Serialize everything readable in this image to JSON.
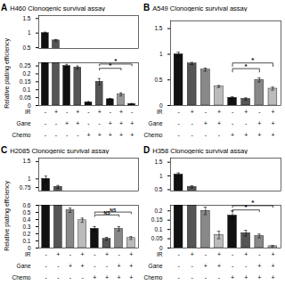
{
  "chart_data": [
    {
      "type": "bar",
      "panel_label": "A",
      "title": "H460 Clonogenic survival assay",
      "ylabel": "Relative plating efficiency",
      "categories": [
        null,
        null,
        null,
        null,
        null,
        null,
        null,
        null,
        null
      ],
      "values": [
        1.0,
        0.75,
        0.25,
        0.24,
        0.02,
        0.15,
        0.04,
        0.07,
        0.01
      ],
      "errors": [
        0.03,
        0.03,
        0.01,
        0.01,
        0.005,
        0.02,
        0.005,
        0.01,
        0.003
      ],
      "colors": [
        "#111111",
        "#555555",
        "#111111",
        "#555555",
        "#111111",
        "#555555",
        "#111111",
        "#999999",
        "#111111"
      ],
      "ylim": [
        0,
        1.6
      ],
      "ybreak": [
        0.27,
        0.47
      ],
      "yticks": [
        0,
        0.05,
        0.1,
        0.15,
        0.2,
        0.25,
        0.5,
        1,
        1.5
      ],
      "tick_labels": "y",
      "annotations": [
        {
          "x1": 5,
          "x2": 7,
          "y": 0.235,
          "label": "*"
        },
        {
          "x1": 5,
          "x2": 8,
          "y": 0.262,
          "label": "*"
        }
      ],
      "rows": [
        {
          "label": "IR",
          "values": [
            "-",
            "+",
            "-",
            "+",
            "-",
            "+",
            "-",
            "+",
            "-"
          ]
        },
        {
          "label": "Gane",
          "values": [
            "-",
            "-",
            "+",
            "+",
            "-",
            "-",
            "+",
            "+",
            "+"
          ]
        },
        {
          "label": "Chemo",
          "values": [
            "-",
            "-",
            "-",
            "-",
            "+",
            "+",
            "+",
            "+",
            "+"
          ]
        }
      ]
    },
    {
      "type": "bar",
      "panel_label": "B",
      "title": "A549 Clonogenic survival assay",
      "categories": [
        null,
        null,
        null,
        null,
        null,
        null,
        null,
        null
      ],
      "values": [
        1.0,
        0.82,
        0.7,
        0.37,
        0.15,
        0.13,
        0.5,
        0.33
      ],
      "errors": [
        0.04,
        0.02,
        0.03,
        0.02,
        0.02,
        0.02,
        0.04,
        0.03
      ],
      "colors": [
        "#111111",
        "#555555",
        "#888888",
        "#bbbbbb",
        "#111111",
        "#555555",
        "#888888",
        "#bbbbbb"
      ],
      "ylim": [
        0,
        1.65
      ],
      "yticks": [
        0,
        0.5,
        1,
        1.5
      ],
      "tick_labels": "y",
      "annotations": [
        {
          "x1": 4,
          "x2": 6,
          "y": 0.72,
          "label": "*"
        },
        {
          "x1": 4,
          "x2": 7,
          "y": 0.83,
          "label": "*"
        }
      ],
      "rows": [
        {
          "label": "IR",
          "values": [
            "-",
            "+",
            "-",
            "+",
            "-",
            "+",
            "-",
            "+"
          ]
        },
        {
          "label": "Gane",
          "values": [
            "-",
            "-",
            "+",
            "+",
            "-",
            "-",
            "+",
            "+"
          ]
        },
        {
          "label": "Chemo",
          "values": [
            "-",
            "-",
            "-",
            "-",
            "+",
            "+",
            "+",
            "+"
          ]
        }
      ]
    },
    {
      "type": "bar",
      "panel_label": "C",
      "title": "H2085 Clonogenic survival assay",
      "ylabel": "Relative plating efficiency",
      "categories": [
        null,
        null,
        null,
        null,
        null,
        null,
        null,
        null
      ],
      "values": [
        1.0,
        0.77,
        0.53,
        0.39,
        0.27,
        0.13,
        0.27,
        0.14
      ],
      "errors": [
        0.08,
        0.04,
        0.03,
        0.03,
        0.03,
        0.02,
        0.03,
        0.02
      ],
      "colors": [
        "#111111",
        "#555555",
        "#888888",
        "#bbbbbb",
        "#111111",
        "#555555",
        "#888888",
        "#bbbbbb"
      ],
      "ylim": [
        0,
        1.6
      ],
      "ybreak": [
        0.6,
        0.65
      ],
      "yticks": [
        0,
        0.1,
        0.2,
        0.3,
        0.4,
        0.5,
        0.6,
        0.75,
        1,
        1.5
      ],
      "tick_labels": "y",
      "annotations": [
        {
          "x1": 4,
          "x2": 6,
          "y": 0.465,
          "label": "NS"
        },
        {
          "x1": 4,
          "x2": 7,
          "y": 0.505,
          "label": "NS"
        }
      ],
      "rows": [
        {
          "label": "IR",
          "values": [
            "-",
            "+",
            "-",
            "+",
            "-",
            "+",
            "-",
            "+"
          ]
        },
        {
          "label": "Gane",
          "values": [
            "-",
            "-",
            "+",
            "+",
            "-",
            "-",
            "+",
            "+"
          ]
        },
        {
          "label": "Chemo",
          "values": [
            "-",
            "-",
            "-",
            "-",
            "+",
            "+",
            "+",
            "+"
          ]
        }
      ]
    },
    {
      "type": "bar",
      "panel_label": "D",
      "title": "H358 Clonogenic survival assay",
      "categories": [
        null,
        null,
        null,
        null,
        null,
        null,
        null,
        null
      ],
      "values": [
        1.05,
        0.6,
        0.2,
        0.07,
        0.175,
        0.08,
        0.065,
        0.01
      ],
      "errors": [
        0.06,
        0.04,
        0.02,
        0.02,
        0.025,
        0.015,
        0.01,
        0.003
      ],
      "colors": [
        "#111111",
        "#555555",
        "#888888",
        "#bbbbbb",
        "#111111",
        "#555555",
        "#888888",
        "#bbbbbb"
      ],
      "ylim": [
        0,
        1.65
      ],
      "ybreak": [
        0.23,
        0.45
      ],
      "yticks": [
        0,
        0.05,
        0.1,
        0.15,
        0.2,
        0.5,
        1,
        1.5
      ],
      "tick_labels": "y",
      "annotations": [
        {
          "x1": 4,
          "x2": 6,
          "y": 0.205,
          "label": "*"
        },
        {
          "x1": 4,
          "x2": 7,
          "y": 0.228,
          "label": "*"
        }
      ],
      "rows": [
        {
          "label": "IR",
          "values": [
            "-",
            "+",
            "-",
            "+",
            "-",
            "+",
            "-",
            "+"
          ]
        },
        {
          "label": "Gane",
          "values": [
            "-",
            "-",
            "+",
            "+",
            "-",
            "-",
            "+",
            "+"
          ]
        },
        {
          "label": "Chemo",
          "values": [
            "-",
            "-",
            "-",
            "-",
            "+",
            "+",
            "+",
            "+"
          ]
        }
      ]
    }
  ]
}
